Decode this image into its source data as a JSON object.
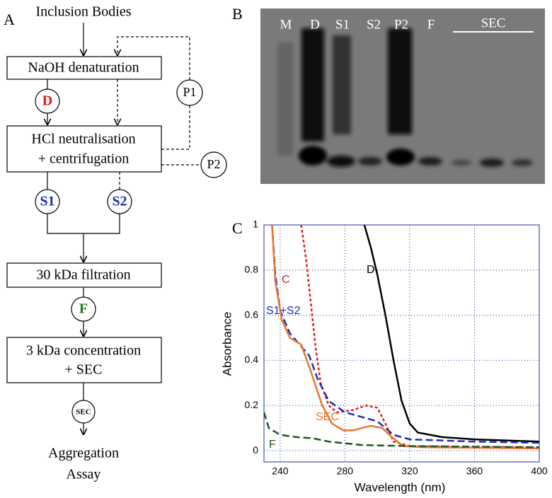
{
  "panel_labels": [
    "A",
    "B",
    "C"
  ],
  "flowchart": {
    "start": "Inclusion Bodies",
    "steps": [
      [
        "NaOH denaturation"
      ],
      [
        "HCl neutralisation",
        "+ centrifugation"
      ],
      [
        "30 kDa filtration"
      ],
      [
        "3 kDa concentration",
        "+ SEC"
      ]
    ],
    "fractions": [
      "D",
      "P1",
      "P2",
      "S1",
      "S2",
      "F",
      "SEC"
    ],
    "end": [
      "Aggregation",
      "Assay"
    ]
  },
  "gel": {
    "lanes": [
      "M",
      "D",
      "S1",
      "S2",
      "P2",
      "F",
      "SEC"
    ]
  },
  "chart_data": {
    "type": "line",
    "xlabel": "Wavelength (nm)",
    "ylabel": "Absorbance",
    "xlim": [
      230,
      400
    ],
    "ylim": [
      -0.05,
      1
    ],
    "xticks": [
      240,
      280,
      320,
      360,
      400
    ],
    "yticks": [
      0,
      0.2,
      0.4,
      0.6,
      0.8,
      1
    ],
    "grid": true,
    "series": [
      {
        "name": "D",
        "color": "#000000",
        "dash": "solid",
        "x": [
          292,
          296,
          300,
          305,
          310,
          315,
          320,
          325,
          340,
          360,
          400
        ],
        "values": [
          1,
          0.9,
          0.78,
          0.6,
          0.4,
          0.22,
          0.12,
          0.08,
          0.06,
          0.05,
          0.04
        ]
      },
      {
        "name": "C",
        "color": "#e02020",
        "dash": "dotted",
        "x": [
          253,
          256,
          259,
          262,
          265,
          270,
          275,
          285,
          293,
          300,
          305,
          310,
          320,
          400
        ],
        "values": [
          1,
          0.85,
          0.65,
          0.45,
          0.3,
          0.2,
          0.17,
          0.18,
          0.2,
          0.19,
          0.12,
          0.04,
          0.02,
          0.015
        ]
      },
      {
        "name": "S1+S2",
        "color": "#1c2fb0",
        "dash": "dashed",
        "x": [
          235,
          237,
          240,
          246,
          252,
          258,
          263,
          270,
          280,
          290,
          300,
          310,
          320,
          360,
          400
        ],
        "values": [
          1,
          0.78,
          0.62,
          0.52,
          0.47,
          0.42,
          0.32,
          0.22,
          0.17,
          0.15,
          0.13,
          0.07,
          0.05,
          0.04,
          0.035
        ]
      },
      {
        "name": "SEC",
        "color": "#e8762d",
        "dash": "solid",
        "x": [
          235,
          237,
          241,
          246,
          253,
          259,
          266,
          272,
          279,
          285,
          296,
          303,
          309,
          316,
          329,
          400
        ],
        "values": [
          1,
          0.75,
          0.58,
          0.5,
          0.47,
          0.35,
          0.2,
          0.12,
          0.09,
          0.09,
          0.11,
          0.1,
          0.06,
          0.02,
          0.015,
          0.01
        ]
      },
      {
        "name": "F",
        "color": "#1e5a1e",
        "dash": "dashed",
        "x": [
          230,
          233,
          240,
          250,
          260,
          270,
          290,
          320,
          400
        ],
        "values": [
          0.17,
          0.1,
          0.07,
          0.06,
          0.055,
          0.04,
          0.025,
          0.02,
          0.015
        ]
      }
    ]
  }
}
